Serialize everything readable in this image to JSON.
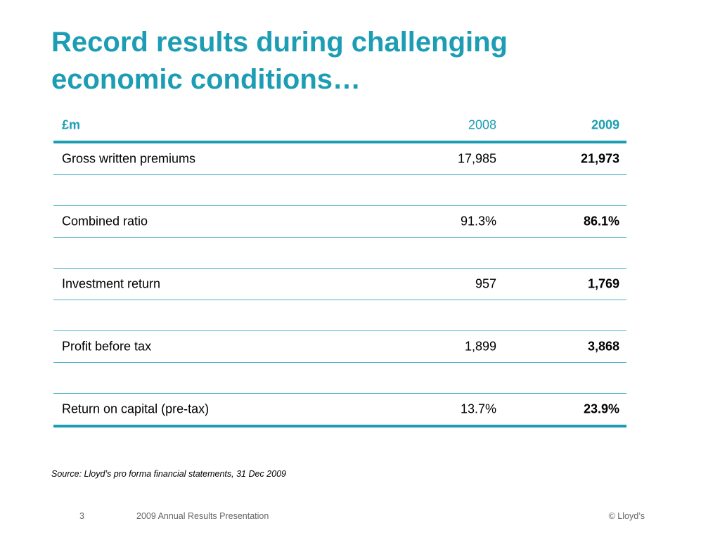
{
  "slide": {
    "title_line1": "Record results during challenging",
    "title_line2": "economic conditions…",
    "accent_color": "#1C9DB4"
  },
  "table": {
    "header": {
      "label": "£m",
      "col_2008": "2008",
      "col_2009": "2009"
    },
    "rows": [
      {
        "label": "Gross written premiums",
        "v2008": "17,985",
        "v2009": "21,973"
      },
      {
        "label": "Combined ratio",
        "v2008": "91.3%",
        "v2009": "86.1%"
      },
      {
        "label": "Investment return",
        "v2008": "957",
        "v2009": "1,769"
      },
      {
        "label": "Profit before tax",
        "v2008": "1,899",
        "v2009": "3,868"
      },
      {
        "label": "Return on capital (pre-tax)",
        "v2008": "13.7%",
        "v2009": "23.9%"
      }
    ]
  },
  "source_note": "Source: Lloyd’s pro forma financial statements, 31 Dec 2009",
  "footer": {
    "page_number": "3",
    "presentation_title": "2009 Annual Results Presentation",
    "copyright": "© Lloyd’s"
  }
}
